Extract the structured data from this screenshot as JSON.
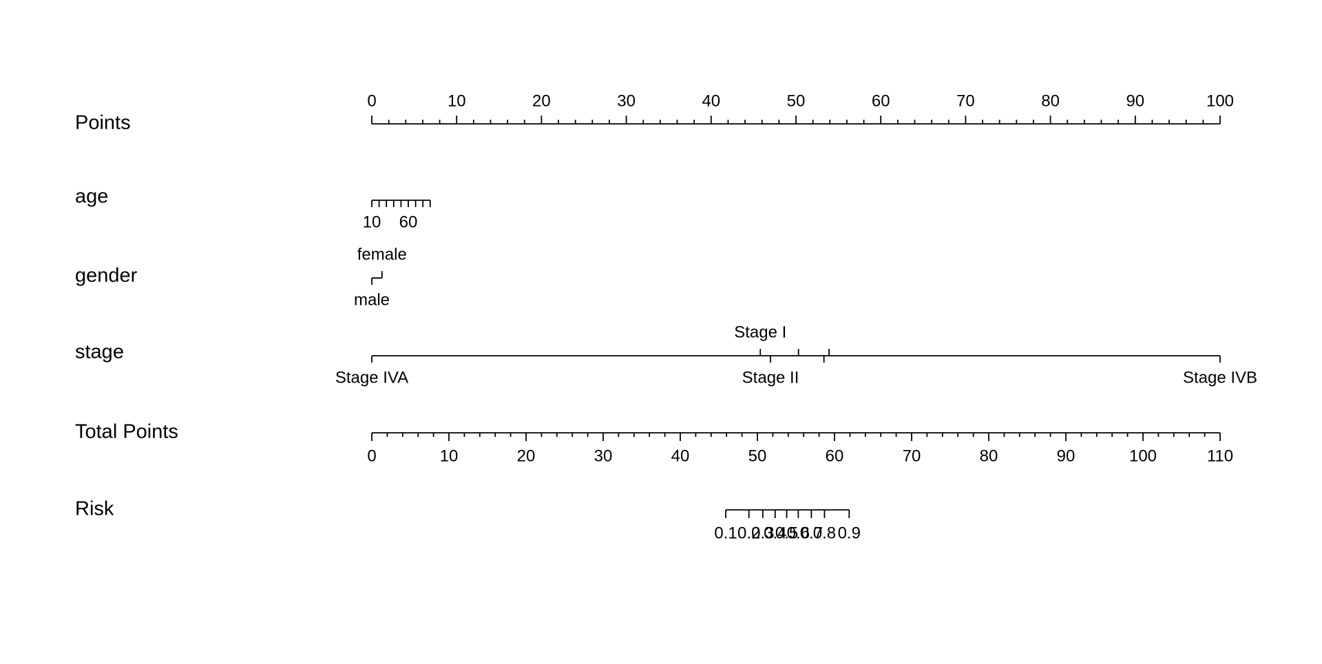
{
  "chart_data": {
    "type": "nomogram",
    "points_axis": {
      "label": "Points",
      "xlim": [
        0,
        100
      ],
      "ticks": [
        0,
        10,
        20,
        30,
        40,
        50,
        60,
        70,
        80,
        90,
        100
      ],
      "minor_ticks": [
        2,
        4,
        6,
        8,
        12,
        14,
        16,
        18,
        22,
        24,
        26,
        28,
        32,
        34,
        36,
        38,
        42,
        44,
        46,
        48,
        52,
        54,
        56,
        58,
        62,
        64,
        66,
        68,
        72,
        74,
        76,
        78,
        82,
        84,
        86,
        88,
        92,
        94,
        96,
        98
      ]
    },
    "variables": [
      {
        "name": "age",
        "levels": [
          {
            "value": 10,
            "points": 0,
            "side": "below"
          },
          {
            "points": 0.86,
            "side": "below"
          },
          {
            "points": 1.72,
            "side": "below"
          },
          {
            "points": 2.58,
            "side": "below"
          },
          {
            "points": 3.44,
            "side": "below"
          },
          {
            "value": 60,
            "points": 4.3,
            "side": "below"
          },
          {
            "points": 5.16,
            "side": "below"
          },
          {
            "points": 6.02,
            "side": "below"
          },
          {
            "points": 6.88,
            "side": "below"
          }
        ]
      },
      {
        "name": "gender",
        "levels": [
          {
            "label": "female",
            "points": 1.2,
            "side": "above"
          },
          {
            "label": "male",
            "points": 0,
            "side": "below"
          }
        ]
      },
      {
        "name": "stage",
        "levels": [
          {
            "label": "Stage IVA",
            "points": 0,
            "side": "below"
          },
          {
            "label": "Stage I",
            "points": 45.8,
            "side": "above"
          },
          {
            "label": "Stage II",
            "points": 47.0,
            "side": "below"
          },
          {
            "points": 50.3,
            "side": "above"
          },
          {
            "points": 53.3,
            "side": "below"
          },
          {
            "points": 53.9,
            "side": "above"
          },
          {
            "label": "Stage IVB",
            "points": 100,
            "side": "below"
          }
        ]
      }
    ],
    "total_points_axis": {
      "label": "Total Points",
      "xlim": [
        0,
        110
      ],
      "ticks": [
        0,
        10,
        20,
        30,
        40,
        50,
        60,
        70,
        80,
        90,
        100,
        110
      ],
      "minor_ticks": [
        2,
        4,
        6,
        8,
        12,
        14,
        16,
        18,
        22,
        24,
        26,
        28,
        32,
        34,
        36,
        38,
        42,
        44,
        46,
        48,
        52,
        54,
        56,
        58,
        62,
        64,
        66,
        68,
        72,
        74,
        76,
        78,
        82,
        84,
        86,
        88,
        92,
        94,
        96,
        98,
        102,
        104,
        106,
        108
      ]
    },
    "risk_axis": {
      "label": "Risk",
      "ticks": [
        {
          "risk": 0.1,
          "total_points": 45.9
        },
        {
          "risk": 0.2,
          "total_points": 48.9
        },
        {
          "risk": 0.3,
          "total_points": 50.7
        },
        {
          "risk": 0.4,
          "total_points": 52.3
        },
        {
          "risk": 0.5,
          "total_points": 53.8
        },
        {
          "risk": 0.6,
          "total_points": 55.3
        },
        {
          "risk": 0.7,
          "total_points": 57.0
        },
        {
          "risk": 0.8,
          "total_points": 58.7
        },
        {
          "risk": 0.9,
          "total_points": 61.9
        }
      ]
    }
  }
}
